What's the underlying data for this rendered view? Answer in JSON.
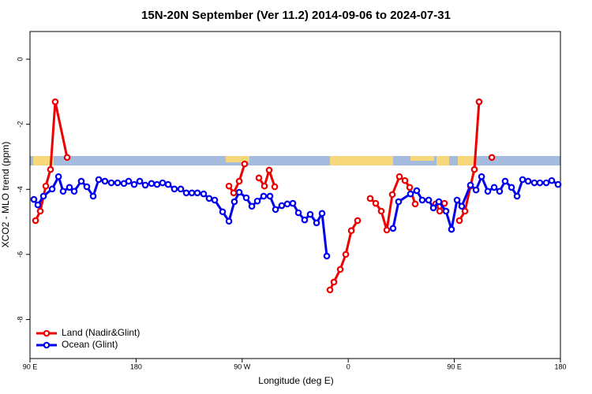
{
  "chart_data": {
    "type": "line",
    "title": "15N-20N September (Ver 11.2)   2014-09-06 to 2024-07-31",
    "x_label": "Longitude (deg E)",
    "y_label": "XCO2 - MLO trend (ppm)",
    "xlim": [
      90,
      540
    ],
    "xticks": [
      {
        "value": 90,
        "label": "90 E"
      },
      {
        "value": 180,
        "label": "180"
      },
      {
        "value": 270,
        "label": "90 W"
      },
      {
        "value": 360,
        "label": "0"
      },
      {
        "value": 450,
        "label": "90 E"
      },
      {
        "value": 540,
        "label": "180"
      }
    ],
    "ylim": [
      -9.2,
      0.85
    ],
    "yticks": [
      0,
      -2,
      -4,
      -6,
      -8
    ],
    "legend": "bottom-left",
    "series": [
      {
        "name": "Land (Nadir&Glint)",
        "color": "#ee0000",
        "x": [
          94.7,
          98.7,
          103.4,
          107.4,
          111.4,
          121.5,
          190,
          258.8,
          262.8,
          267.5,
          272.1,
          278,
          284.2,
          288.9,
          292.9,
          297.6,
          320,
          344.5,
          347.8,
          353.2,
          357.9,
          362.6,
          367.9,
          373,
          378.6,
          383.3,
          388.0,
          392.7,
          397.4,
          403.4,
          408.1,
          412.1,
          416.8,
          425,
          434.2,
          437.6,
          441.6,
          448,
          454.3,
          459.0,
          463.7,
          467.0,
          471.0,
          476,
          481.8
        ],
        "values": [
          -4.96,
          -4.67,
          -3.9,
          -3.39,
          -1.31,
          -3.02,
          null,
          -3.9,
          -4.11,
          -3.75,
          -3.22,
          null,
          -3.65,
          -3.9,
          -3.41,
          -3.92,
          null,
          -7.09,
          -6.85,
          -6.46,
          -6.0,
          -5.27,
          -4.96,
          null,
          -4.28,
          -4.43,
          -4.67,
          -5.25,
          -4.16,
          -3.61,
          -3.73,
          -3.94,
          -4.45,
          null,
          -4.45,
          -4.67,
          -4.43,
          null,
          -4.96,
          -4.67,
          -3.9,
          -3.39,
          -1.31,
          null,
          -3.02
        ]
      },
      {
        "name": "Ocean (Glint)",
        "color": "#0000ee",
        "x": [
          93.3,
          96.7,
          101.4,
          108.8,
          114.2,
          118.1,
          123.5,
          127.5,
          133.5,
          138.2,
          143.6,
          148.3,
          153.6,
          159.0,
          164.3,
          169.7,
          173.7,
          178.4,
          183.1,
          187.8,
          193.1,
          197.8,
          202.5,
          207.2,
          212.5,
          217.9,
          222.6,
          227.3,
          232.0,
          237.3,
          242.0,
          246.7,
          253.4,
          258.8,
          263.4,
          267.5,
          273.5,
          278.2,
          282.9,
          288.2,
          293.6,
          298.3,
          303.6,
          308.3,
          313.0,
          317.7,
          323.0,
          327.7,
          333.1,
          337.8,
          341.8,
          370,
          398.0,
          402.7,
          412.8,
          418.1,
          422.8,
          428.2,
          432.2,
          436.9,
          442.9,
          447.6,
          452.3,
          456.3,
          463.7,
          468.4,
          473.1,
          478.4,
          483.8,
          488.4,
          493.1,
          498.5,
          503.2,
          507.9,
          512.6,
          517.9,
          522.6,
          528.0,
          532.6,
          538.0
        ],
        "values": [
          -4.31,
          -4.48,
          -4.21,
          -3.99,
          -3.61,
          -4.06,
          -3.94,
          -4.06,
          -3.75,
          -3.92,
          -4.21,
          -3.7,
          -3.75,
          -3.8,
          -3.8,
          -3.82,
          -3.75,
          -3.85,
          -3.75,
          -3.87,
          -3.82,
          -3.85,
          -3.8,
          -3.85,
          -3.99,
          -3.99,
          -4.11,
          -4.11,
          -4.11,
          -4.14,
          -4.28,
          -4.33,
          -4.69,
          -4.98,
          -4.38,
          -4.09,
          -4.26,
          -4.52,
          -4.36,
          -4.21,
          -4.21,
          -4.62,
          -4.5,
          -4.45,
          -4.43,
          -4.72,
          -4.94,
          -4.77,
          -5.03,
          -4.74,
          -6.05,
          null,
          -5.2,
          -4.38,
          -4.14,
          -4.04,
          -4.33,
          -4.33,
          -4.57,
          -4.38,
          -4.67,
          -5.23,
          -4.33,
          -4.52,
          -3.87,
          -4.02,
          -3.61,
          -4.06,
          -3.94,
          -4.06,
          -3.75,
          -3.94,
          -4.21,
          -3.7,
          -3.75,
          -3.8,
          -3.8,
          -3.8,
          -3.73,
          -3.85
        ]
      }
    ]
  }
}
